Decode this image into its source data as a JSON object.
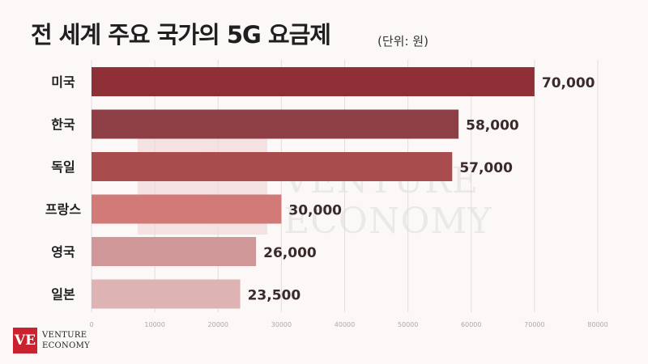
{
  "title": "전 세계 주요 국가의 5G 요금제",
  "unit_label": "(단위: 원)",
  "watermark": {
    "line1": "VENTURE",
    "line2": "ECONOMY"
  },
  "logo": {
    "mark": "VE",
    "line1": "VENTURE",
    "line2": "ECONOMY"
  },
  "chart_data": {
    "type": "bar",
    "orientation": "horizontal",
    "categories": [
      "미국",
      "한국",
      "독일",
      "프랑스",
      "영국",
      "일본"
    ],
    "values": [
      70000,
      58000,
      57000,
      30000,
      26000,
      23500
    ],
    "value_labels": [
      "70,000",
      "58,000",
      "57,000",
      "30,000",
      "26,000",
      "23,500"
    ],
    "bar_colors": [
      "#8e3035",
      "#8d3f45",
      "#a84c4e",
      "#d17a77",
      "#cf9797",
      "#ddb3b3"
    ],
    "xlim": [
      0,
      80000
    ],
    "x_ticks": [
      0,
      10000,
      20000,
      30000,
      40000,
      50000,
      60000,
      70000,
      80000
    ],
    "grid": "vertical",
    "legend": "none"
  }
}
